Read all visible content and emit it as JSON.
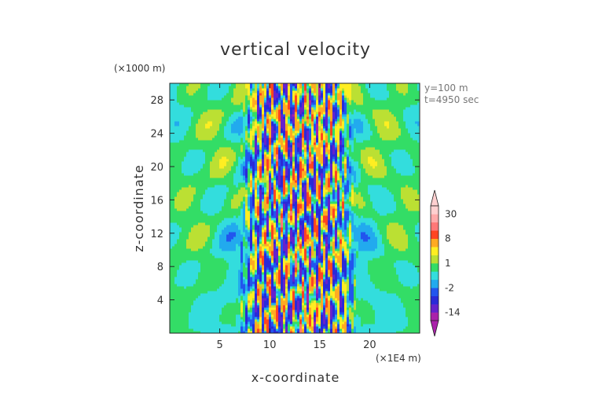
{
  "chart_data": {
    "type": "heatmap",
    "title": "vertical velocity",
    "xlabel": "x-coordinate",
    "ylabel": "z-coordinate",
    "x_unit": "(×1E4 m)",
    "y_unit": "(×1000 m)",
    "xlim": [
      0,
      25
    ],
    "ylim": [
      0,
      30
    ],
    "x_ticks": [
      5,
      10,
      15,
      20
    ],
    "y_ticks": [
      4,
      8,
      12,
      16,
      20,
      24,
      28
    ],
    "annotations": [
      "y=100 m",
      "t=4950 sec"
    ],
    "colorbar": {
      "tick_labels": [
        30,
        8,
        1,
        -2,
        -14
      ],
      "levels": [
        -14,
        -8,
        -4,
        -2,
        -1,
        0,
        1,
        2,
        4,
        8,
        14,
        20,
        30
      ],
      "extend": "both",
      "colors": [
        "#aa22aa",
        "#6622cc",
        "#2a2ad8",
        "#2255ee",
        "#22aaee",
        "#33dddd",
        "#33dd66",
        "#bbe033",
        "#ffee22",
        "#ffaa22",
        "#ff4422",
        "#ff7777",
        "#ffaaaa",
        "#ffd0d0"
      ]
    },
    "description_values": {
      "outer_field": "near zero (green/yellow)",
      "center_band_x": [
        8,
        18
      ]
    }
  }
}
